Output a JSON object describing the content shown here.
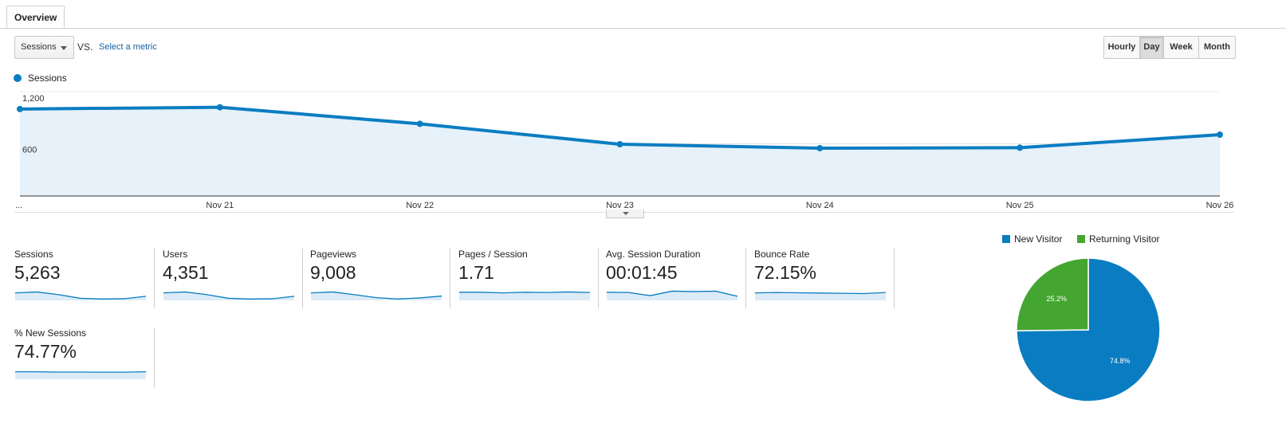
{
  "tabs": {
    "overview": "Overview"
  },
  "controls": {
    "metric": "Sessions",
    "vs": "VS.",
    "select_metric": "Select a metric",
    "periods": [
      "Hourly",
      "Day",
      "Week",
      "Month"
    ],
    "active_period": "Day"
  },
  "colors": {
    "accent": "#0a7dc2",
    "returning": "#44a630",
    "area": "#e6f1f9",
    "link": "#1a5fa0"
  },
  "chart_data": [
    {
      "type": "area",
      "series": [
        {
          "name": "Sessions",
          "values": [
            1000,
            1020,
            830,
            595,
            550,
            555,
            705
          ]
        }
      ],
      "categories": [
        "...",
        "Nov 21",
        "Nov 22",
        "Nov 23",
        "Nov 24",
        "Nov 25",
        "Nov 26"
      ],
      "yticks": [
        "1,200",
        "600"
      ],
      "ylim": [
        0,
        1200
      ],
      "grid": true,
      "legend": "top-left"
    },
    {
      "type": "pie",
      "labels": [
        "New Visitor",
        "Returning Visitor"
      ],
      "values": [
        74.8,
        25.2
      ],
      "value_labels": [
        "74.8%",
        "25.2%"
      ],
      "colors": [
        "#0a7dc2",
        "#44a630"
      ],
      "legend": "top"
    }
  ],
  "metrics": [
    {
      "label": "Sessions",
      "value": "5,263",
      "spark": [
        0.55,
        0.62,
        0.42,
        0.15,
        0.1,
        0.12,
        0.3
      ]
    },
    {
      "label": "Users",
      "value": "4,351",
      "spark": [
        0.55,
        0.62,
        0.42,
        0.15,
        0.1,
        0.12,
        0.3
      ]
    },
    {
      "label": "Pageviews",
      "value": "9,008",
      "spark": [
        0.55,
        0.62,
        0.42,
        0.2,
        0.1,
        0.18,
        0.32
      ]
    },
    {
      "label": "Pages / Session",
      "value": "1.71",
      "spark": [
        0.6,
        0.6,
        0.55,
        0.6,
        0.58,
        0.62,
        0.58
      ]
    },
    {
      "label": "Avg. Session Duration",
      "value": "00:01:45",
      "spark": [
        0.6,
        0.58,
        0.35,
        0.68,
        0.65,
        0.68,
        0.3
      ]
    },
    {
      "label": "Bounce Rate",
      "value": "72.15%",
      "spark": [
        0.55,
        0.58,
        0.56,
        0.54,
        0.52,
        0.5,
        0.58
      ]
    },
    {
      "label": "% New Sessions",
      "value": "74.77%",
      "spark": [
        0.55,
        0.55,
        0.53,
        0.53,
        0.52,
        0.52,
        0.55
      ]
    }
  ]
}
